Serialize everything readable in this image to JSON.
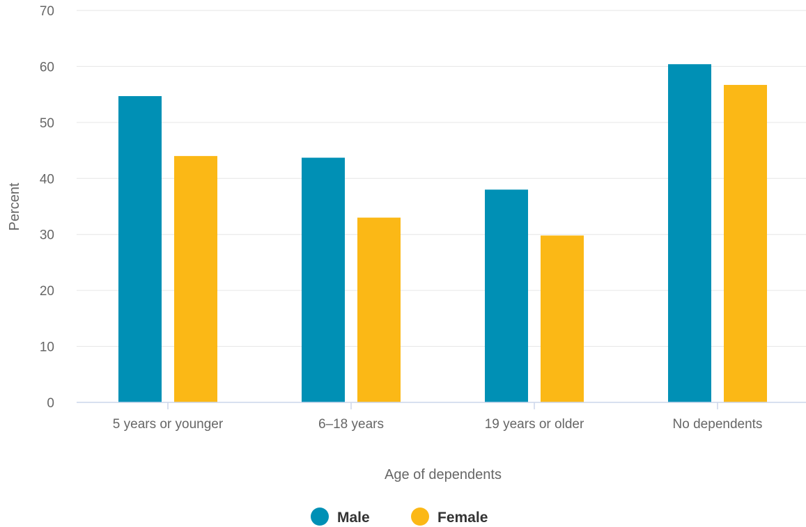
{
  "chart_data": {
    "type": "bar",
    "title": "",
    "xlabel": "Age of dependents",
    "ylabel": "Percent",
    "categories": [
      "5 years or younger",
      "6–18 years",
      "19 years or older",
      "No dependents"
    ],
    "series": [
      {
        "name": "Male",
        "color": "#0090b5",
        "values": [
          54.7,
          43.7,
          38.0,
          60.4
        ]
      },
      {
        "name": "Female",
        "color": "#fbb816",
        "values": [
          44.0,
          33.0,
          29.8,
          56.7
        ]
      }
    ],
    "ylim": [
      0,
      70
    ],
    "yticks": [
      0,
      10,
      20,
      30,
      40,
      50,
      60,
      70
    ],
    "grid": true,
    "legend_position": "bottom-center"
  }
}
